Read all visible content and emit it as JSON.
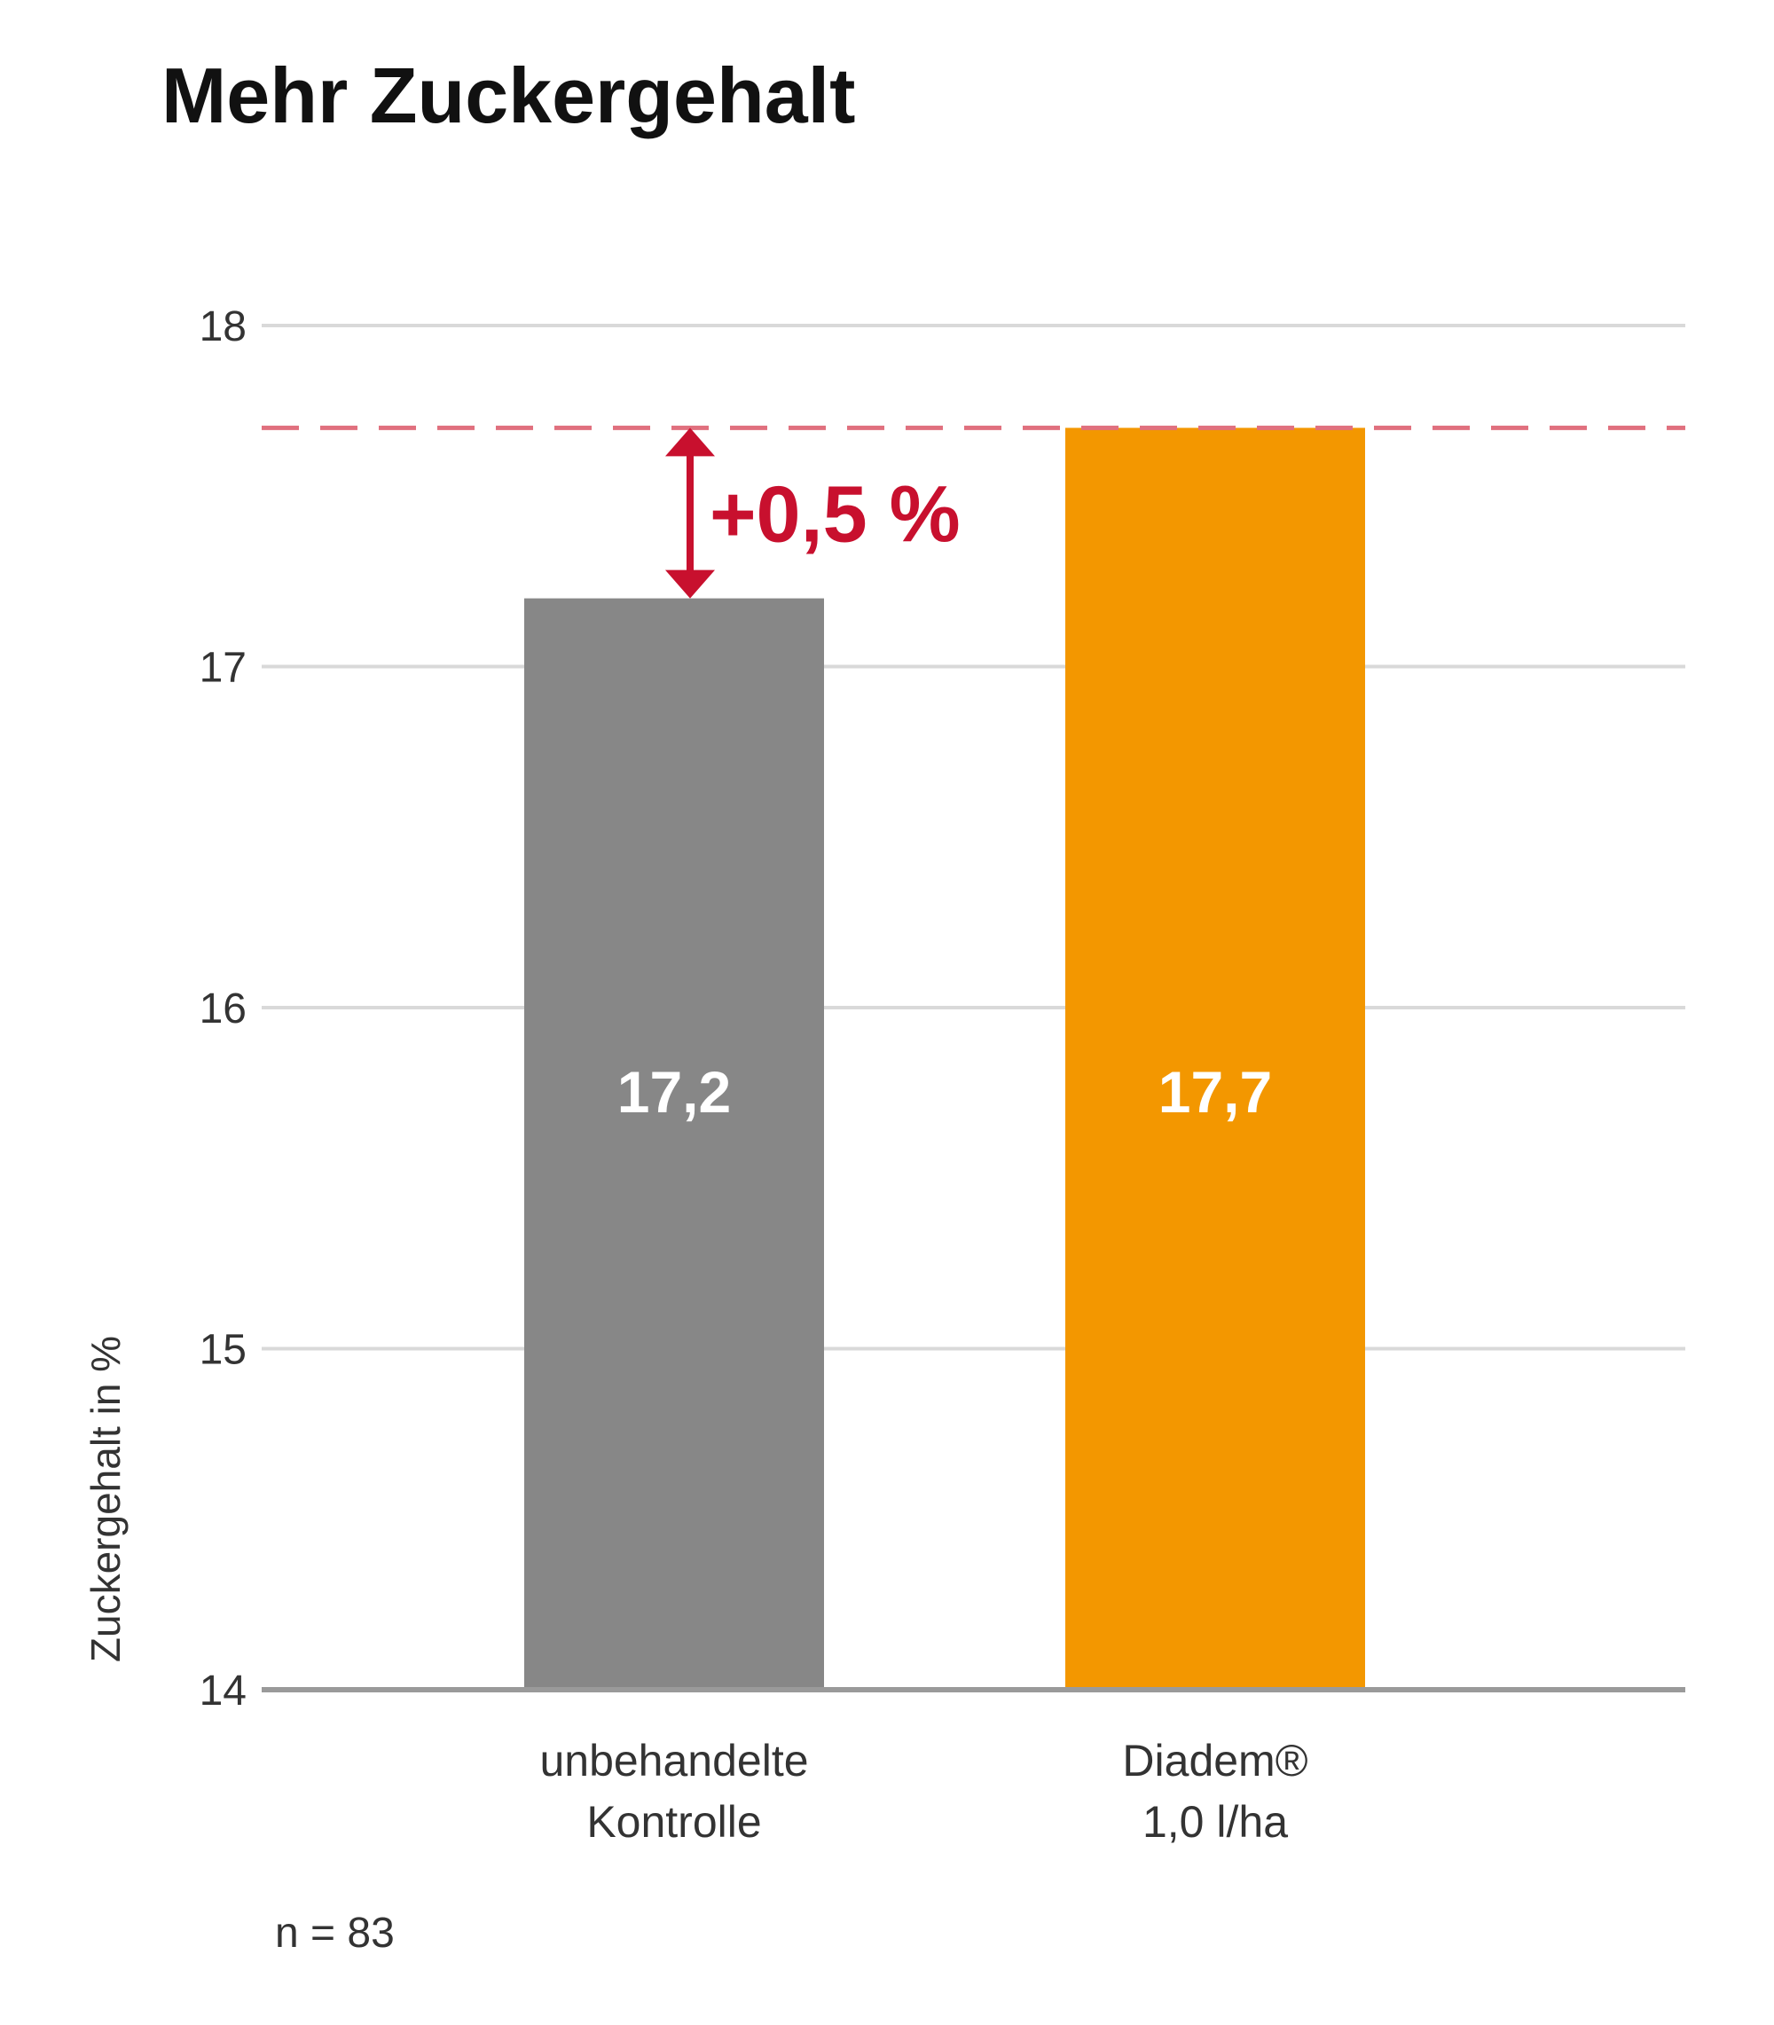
{
  "chart_data": {
    "type": "bar",
    "title": "Mehr Zuckergehalt",
    "ylabel": "Zuckergehalt in %",
    "ylim": [
      14,
      18
    ],
    "yticks": [
      "14",
      "15",
      "16",
      "17",
      "18"
    ],
    "grid": true,
    "categories": [
      {
        "line1": "unbehandelte",
        "line2": "Kontrolle"
      },
      {
        "line1": "Diadem®",
        "line2": "1,0 l/ha"
      }
    ],
    "values": [
      17.2,
      17.7
    ],
    "value_labels": [
      "17,2",
      "17,7"
    ],
    "bar_colors": [
      "#878787",
      "#F39700"
    ],
    "reference_line": {
      "value": 17.7,
      "color": "#E0707E",
      "style": "dashed"
    },
    "difference": {
      "label": "+0,5 %",
      "from": 17.2,
      "to": 17.7,
      "color": "#C8102E"
    },
    "note": "n = 83"
  }
}
